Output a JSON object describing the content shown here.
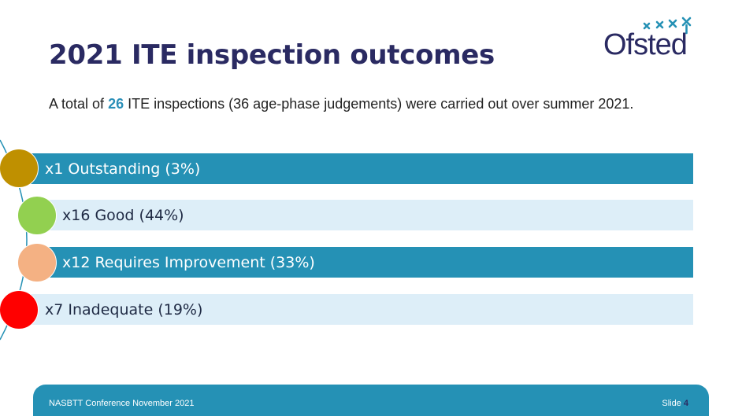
{
  "slide": {
    "title": "2021 ITE inspection outcomes",
    "intro_prefix": "A total of ",
    "intro_number": "26",
    "intro_suffix": " ITE inspections (36 age-phase judgements) were carried out over summer 2021."
  },
  "logo": {
    "text": "Ofsted",
    "icon": "ofsted-stars-logo"
  },
  "outcomes": [
    {
      "label": "x1 Outstanding (3%)",
      "circle_color": "#bf9000",
      "bar_style": "dark"
    },
    {
      "label": "x16 Good (44%)",
      "circle_color": "#92d050",
      "bar_style": "light"
    },
    {
      "label": "x12 Requires Improvement (33%)",
      "circle_color": "#f4b183",
      "bar_style": "dark"
    },
    {
      "label": "x7 Inadequate (19%)",
      "circle_color": "#ff0000",
      "bar_style": "light"
    }
  ],
  "footer": {
    "left": "NASBTT Conference November 2021",
    "slide_label": "Slide",
    "slide_number": "4"
  },
  "colors": {
    "accent": "#2591b5",
    "title": "#2a2a62",
    "light_bar": "#ddeef8"
  }
}
